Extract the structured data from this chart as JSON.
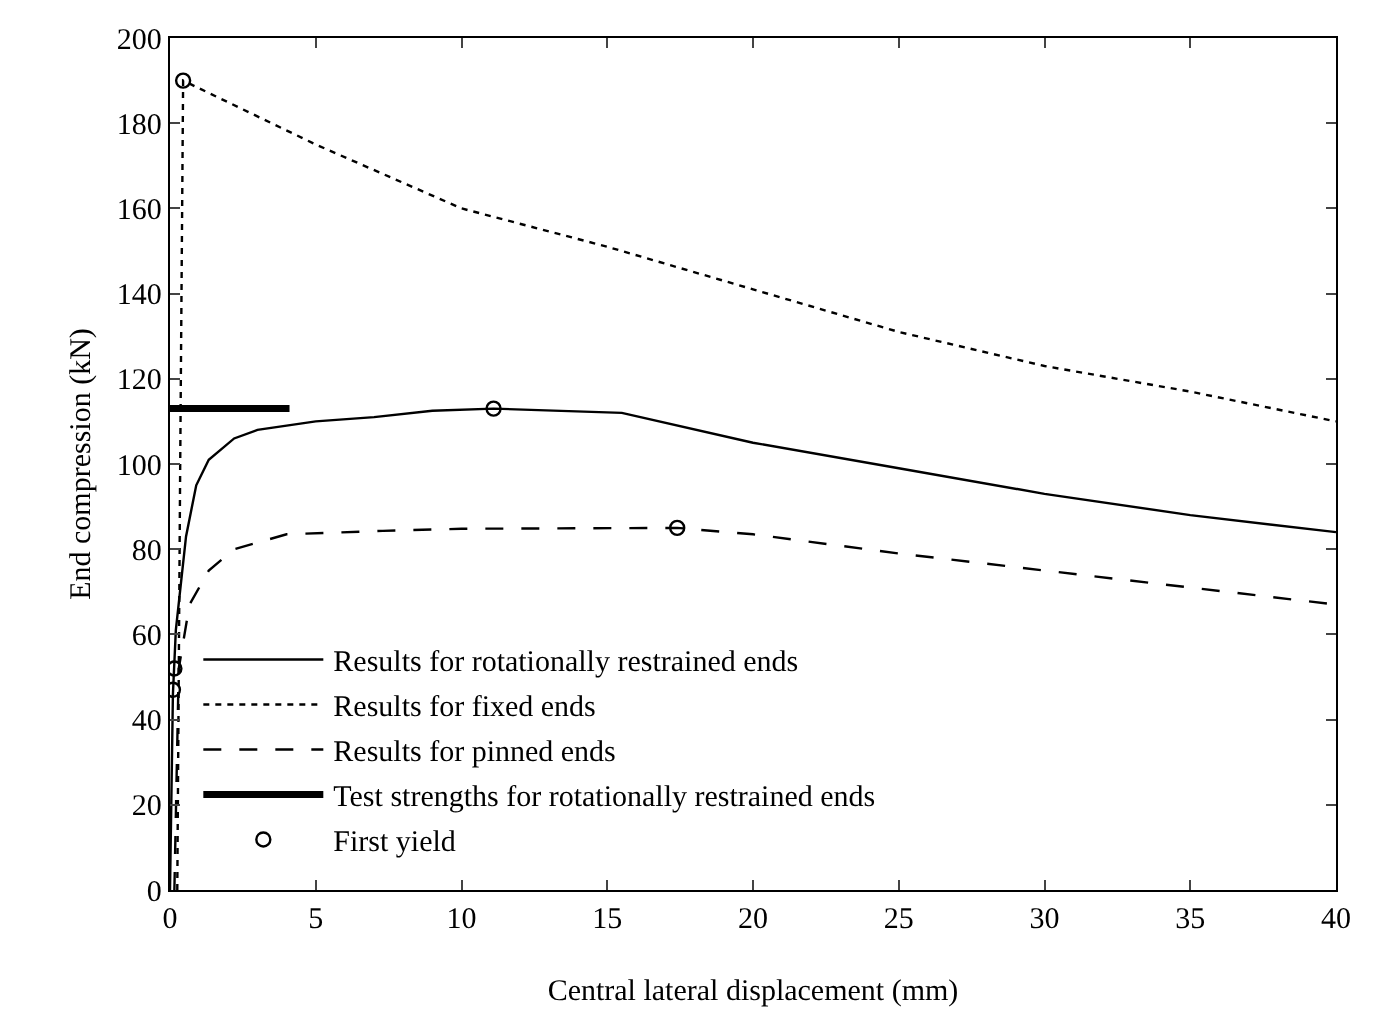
{
  "chart_data": {
    "type": "line",
    "xlabel": "Central lateral displacement (mm)",
    "ylabel": "End compression (kN)",
    "xlim": [
      0,
      40
    ],
    "ylim": [
      0,
      200
    ],
    "xticks": [
      0,
      5,
      10,
      15,
      20,
      25,
      30,
      35,
      40
    ],
    "yticks": [
      0,
      20,
      40,
      60,
      80,
      100,
      120,
      140,
      160,
      180,
      200
    ],
    "grid": false,
    "legend": "bottom left",
    "series": [
      {
        "name": "Results for rotationally restrained ends",
        "color": "#000000",
        "line_style": "solid",
        "marker": "none",
        "x": [
          0,
          0.1,
          0.2,
          0.55,
          0.9,
          1.33,
          2.2,
          3,
          4,
          5,
          7,
          9,
          11.1,
          15.5,
          20,
          25,
          30,
          35,
          40
        ],
        "values": [
          0,
          46,
          61,
          83,
          95,
          101,
          106,
          108,
          109,
          110,
          111,
          112.5,
          113,
          112,
          105,
          99,
          93,
          88,
          84
        ]
      },
      {
        "name": "Results for fixed ends",
        "color": "#000000",
        "line_style": "dotted",
        "marker": "none",
        "x": [
          0.25,
          0.35,
          0.45,
          5,
          10,
          15,
          20,
          25,
          30,
          35,
          40
        ],
        "values": [
          0,
          100,
          190,
          175,
          160,
          151,
          141,
          131,
          123,
          117,
          110
        ]
      },
      {
        "name": "Results for pinned ends",
        "color": "#000000",
        "line_style": "dashed",
        "marker": "none",
        "x": [
          0.15,
          0.3,
          0.67,
          1.33,
          2.2,
          4,
          7.3,
          10,
          17.4,
          20,
          25,
          30,
          35,
          40
        ],
        "values": [
          0,
          52,
          67,
          75,
          80,
          83.5,
          84.3,
          84.8,
          85,
          83.5,
          79,
          75,
          71,
          67
        ]
      },
      {
        "name": "Test strengths for rotationally restrained ends",
        "color": "#000000",
        "line_style": "solid",
        "marker": "none",
        "x": [
          0,
          4.1
        ],
        "values": [
          113,
          113
        ]
      },
      {
        "name": "First yield",
        "color": "#000000",
        "type": "scatter",
        "marker": "circle",
        "x": [
          0.45,
          11.1,
          17.4,
          0.1,
          0.15
        ],
        "values": [
          190,
          113,
          85,
          47,
          52
        ]
      }
    ]
  }
}
